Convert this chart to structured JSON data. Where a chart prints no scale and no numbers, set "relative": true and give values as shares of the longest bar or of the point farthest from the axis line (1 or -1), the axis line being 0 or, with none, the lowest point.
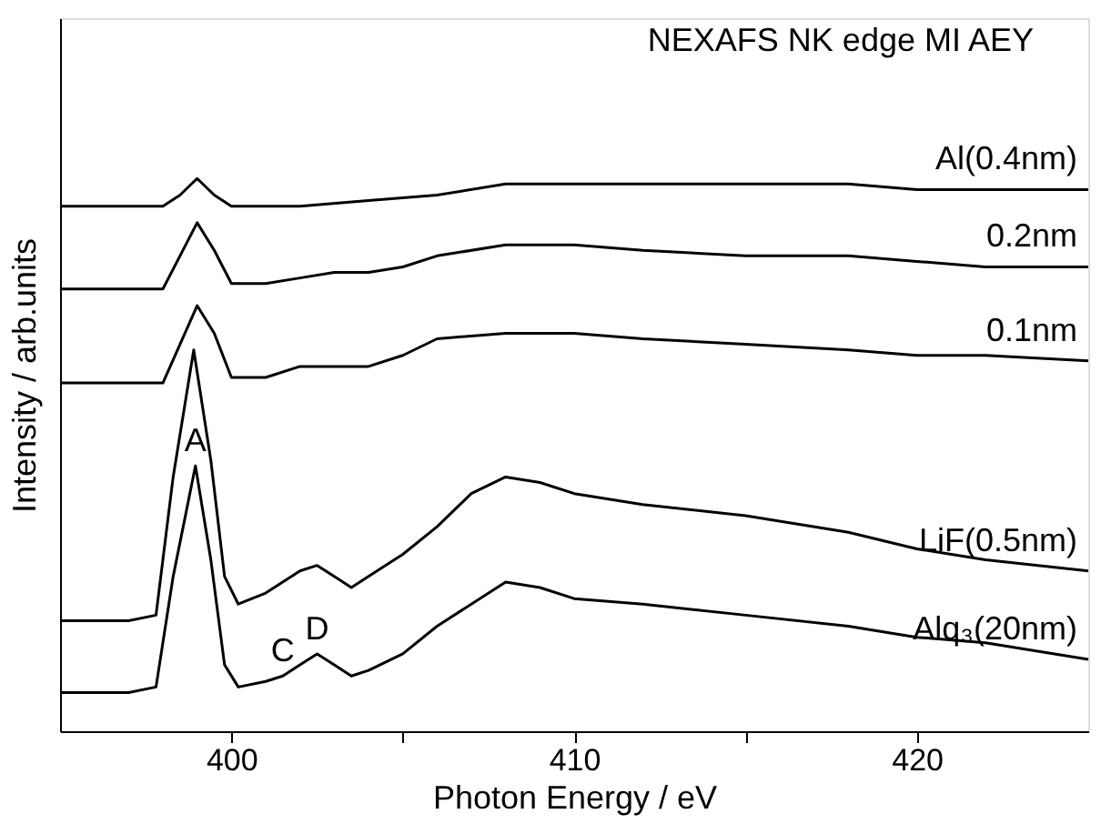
{
  "chart_data": {
    "type": "line",
    "title": "NEXAFS NK edge MI AEY",
    "xlabel": "Photon Energy / eV",
    "ylabel": "Intensity / arb.units",
    "relative": true,
    "xlim": [
      395,
      425
    ],
    "xticks": [
      400,
      {
        "value": 405,
        "label": null
      },
      410,
      {
        "value": 415,
        "label": null
      },
      420
    ],
    "grid": false,
    "legend": false,
    "marker": "none",
    "line_style": "solid",
    "series": [
      {
        "name": "Al(0.4nm)",
        "color": "#000000",
        "x": [
          395,
          398,
          398.5,
          399,
          399.5,
          400,
          401,
          402,
          404,
          406,
          408,
          410,
          412,
          415,
          418,
          420,
          422,
          425
        ],
        "values": [
          0.95,
          0.95,
          0.97,
          1.0,
          0.97,
          0.95,
          0.95,
          0.95,
          0.96,
          0.97,
          0.99,
          0.99,
          0.99,
          0.99,
          0.99,
          0.98,
          0.98,
          0.98
        ]
      },
      {
        "name": "0.2nm",
        "color": "#000000",
        "x": [
          395,
          398,
          398.5,
          399,
          399.5,
          400,
          401,
          402,
          403,
          404,
          405,
          406,
          408,
          410,
          412,
          415,
          418,
          420,
          422,
          425
        ],
        "values": [
          0.8,
          0.8,
          0.86,
          0.92,
          0.87,
          0.81,
          0.81,
          0.82,
          0.83,
          0.83,
          0.84,
          0.86,
          0.88,
          0.88,
          0.87,
          0.86,
          0.86,
          0.85,
          0.84,
          0.84
        ]
      },
      {
        "name": "0.1nm",
        "color": "#000000",
        "x": [
          395,
          398,
          398.5,
          399,
          399.5,
          400,
          401,
          402,
          403,
          404,
          405,
          406,
          408,
          410,
          412,
          415,
          418,
          420,
          422,
          425
        ],
        "values": [
          0.63,
          0.63,
          0.7,
          0.77,
          0.72,
          0.64,
          0.64,
          0.66,
          0.66,
          0.66,
          0.68,
          0.71,
          0.72,
          0.72,
          0.71,
          0.7,
          0.69,
          0.68,
          0.68,
          0.67
        ]
      },
      {
        "name": "LiF(0.5nm)",
        "color": "#000000",
        "x": [
          395,
          397,
          397.8,
          398.3,
          398.9,
          399.4,
          399.8,
          400.2,
          401,
          402,
          402.5,
          403,
          403.5,
          404,
          405,
          406,
          407,
          408,
          409,
          410,
          412,
          415,
          418,
          420,
          422,
          425
        ],
        "values": [
          0.2,
          0.2,
          0.21,
          0.46,
          0.69,
          0.49,
          0.28,
          0.23,
          0.25,
          0.29,
          0.3,
          0.28,
          0.26,
          0.28,
          0.32,
          0.37,
          0.43,
          0.46,
          0.45,
          0.43,
          0.41,
          0.39,
          0.36,
          0.33,
          0.31,
          0.29
        ]
      },
      {
        "name": "Alq₃(20nm)",
        "color": "#000000",
        "x": [
          395,
          397,
          397.8,
          398.3,
          398.95,
          399.4,
          399.8,
          400.2,
          401,
          401.5,
          402,
          402.5,
          403,
          403.5,
          404,
          405,
          406,
          407,
          408,
          409,
          410,
          412,
          415,
          418,
          420,
          422,
          425
        ],
        "values": [
          0.07,
          0.07,
          0.08,
          0.28,
          0.48,
          0.31,
          0.12,
          0.08,
          0.09,
          0.1,
          0.12,
          0.14,
          0.12,
          0.1,
          0.11,
          0.14,
          0.19,
          0.23,
          0.27,
          0.26,
          0.24,
          0.23,
          0.21,
          0.19,
          0.17,
          0.16,
          0.13
        ]
      }
    ],
    "annotations": [
      {
        "text": "A",
        "x": 398.95,
        "y": 0.48
      },
      {
        "text": "C",
        "x": 401.5,
        "y": 0.1
      },
      {
        "text": "D",
        "x": 402.5,
        "y": 0.14
      }
    ]
  }
}
